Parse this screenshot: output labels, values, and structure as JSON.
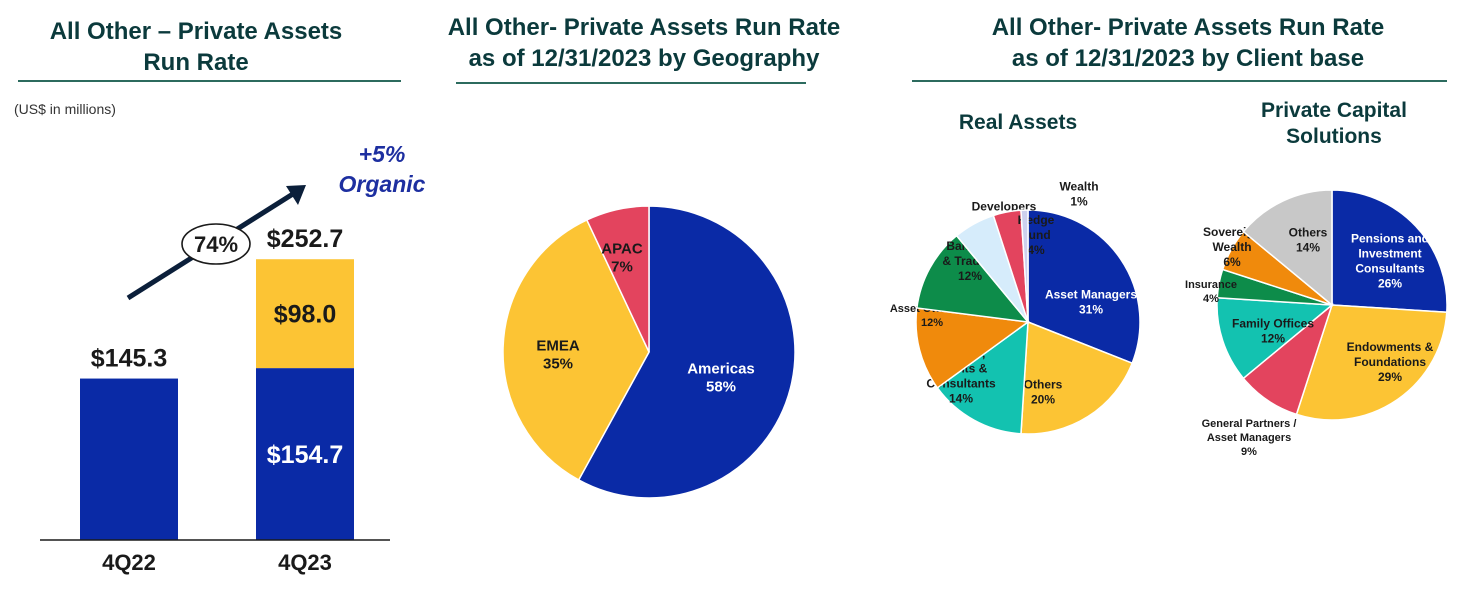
{
  "panel1": {
    "title_line1": "All Other – Private Assets",
    "title_line2": "Run Rate",
    "units": "(US$ in millions)"
  },
  "panel2": {
    "title_line1": "All Other- Private Assets Run Rate",
    "title_line2": "as of 12/31/2023 by Geography"
  },
  "panel3": {
    "title_line1": "All Other- Private Assets Run Rate",
    "title_line2": "as of 12/31/2023 by Client base",
    "sub1": "Real Assets",
    "sub2_line1": "Private Capital",
    "sub2_line2": "Solutions"
  },
  "colors": {
    "navy": "#0a2aa6",
    "yellow": "#fcc434",
    "red": "#e3445e",
    "green": "#0d8c4a",
    "teal": "#13c2b0",
    "orange": "#f08a0c",
    "lightblue": "#d6ecfb",
    "gray": "#c8c8c8",
    "lavender": "#cdd1ee",
    "title": "#0b3a3c",
    "accent_text": "#1d2fa0"
  },
  "chart_data": [
    {
      "type": "bar",
      "stacked": true,
      "categories": [
        "4Q22",
        "4Q23"
      ],
      "series": [
        {
          "values": [
            145.3,
            154.7
          ],
          "labels": [
            "$145.3",
            "$154.7"
          ],
          "color": "#0a2aa6"
        },
        {
          "values": [
            0,
            98.0
          ],
          "labels": [
            "",
            "$98.0"
          ],
          "color": "#fcc434"
        }
      ],
      "totals": [
        "$145.3",
        "$252.7"
      ],
      "annotations": {
        "growth_pct": "74%",
        "organic_line1": "+5%",
        "organic_line2": "Organic"
      },
      "ylim": [
        0,
        270
      ]
    },
    {
      "type": "pie",
      "slices": [
        {
          "label": "Americas",
          "pct_label": "58%",
          "value": 58,
          "color": "#0a2aa6"
        },
        {
          "label": "EMEA",
          "pct_label": "35%",
          "value": 35,
          "color": "#fcc434"
        },
        {
          "label": "APAC",
          "pct_label": "7%",
          "value": 7,
          "color": "#e3445e"
        }
      ]
    },
    {
      "type": "pie",
      "slices": [
        {
          "label": "Asset Managers",
          "pct_label": "31%",
          "value": 31,
          "color": "#0a2aa6"
        },
        {
          "label": "Others",
          "pct_label": "20%",
          "value": 20,
          "color": "#fcc434"
        },
        {
          "label": "Brokers, Agents & Consultants",
          "pct_label": "14%",
          "value": 14,
          "color": "#13c2b0"
        },
        {
          "label": "Asset Owners & Consultants",
          "pct_label": "12%",
          "value": 12,
          "color": "#f08a0c"
        },
        {
          "label": "Banking & Trading",
          "pct_label": "12%",
          "value": 12,
          "color": "#0d8c4a"
        },
        {
          "label": "Developers",
          "pct_label": "6%",
          "value": 6,
          "color": "#d6ecfb"
        },
        {
          "label": "Hedge Fund",
          "pct_label": "4%",
          "value": 4,
          "color": "#e3445e"
        },
        {
          "label": "Wealth",
          "pct_label": "1%",
          "value": 1,
          "color": "#cdd1ee"
        }
      ]
    },
    {
      "type": "pie",
      "slices": [
        {
          "label": "Pensions and Investment Consultants",
          "pct_label": "26%",
          "value": 26,
          "color": "#0a2aa6"
        },
        {
          "label": "Endowments & Foundations",
          "pct_label": "29%",
          "value": 29,
          "color": "#fcc434"
        },
        {
          "label": "General Partners / Asset Managers",
          "pct_label": "9%",
          "value": 9,
          "color": "#e3445e"
        },
        {
          "label": "Family Offices",
          "pct_label": "12%",
          "value": 12,
          "color": "#13c2b0"
        },
        {
          "label": "Insurance",
          "pct_label": "4%",
          "value": 4,
          "color": "#0d8c4a"
        },
        {
          "label": "Sovereign Wealth",
          "pct_label": "6%",
          "value": 6,
          "color": "#f08a0c"
        },
        {
          "label": "Others",
          "pct_label": "14%",
          "value": 14,
          "color": "#c8c8c8"
        }
      ]
    }
  ]
}
